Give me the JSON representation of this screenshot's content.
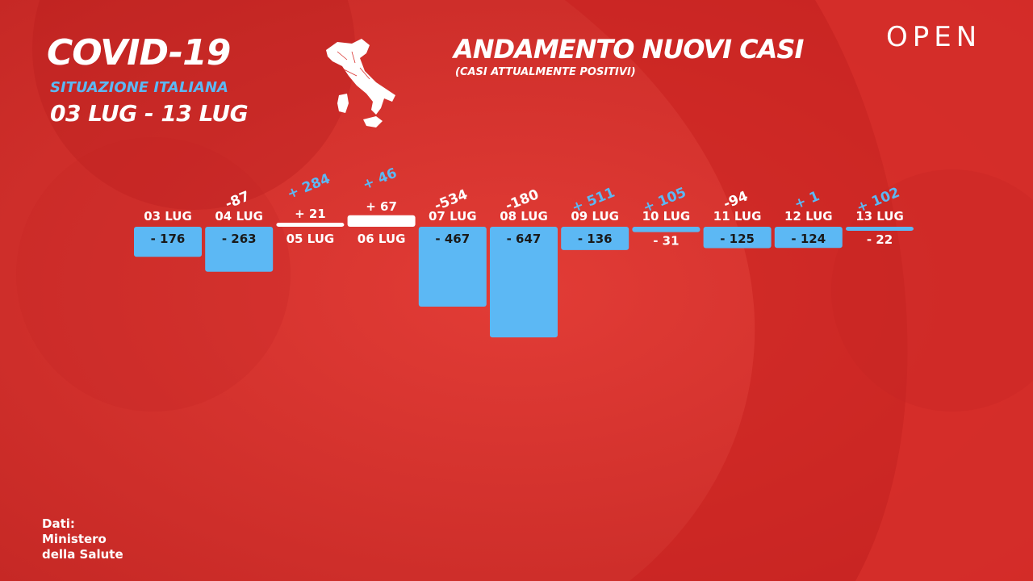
{
  "header": {
    "title": "COVID-19",
    "subtitle": "SITUAZIONE ITALIANA",
    "date_range": "03 LUG - 13 LUG",
    "brand": "OPEN"
  },
  "chart_data": {
    "type": "bar",
    "title": "ANDAMENTO NUOVI CASI",
    "subtitle": "(CASI ATTUALMENTE POSITIVI)",
    "xlabel": "",
    "ylabel": "",
    "categories": [
      "03 LUG",
      "04 LUG",
      "05 LUG",
      "06 LUG",
      "07 LUG",
      "08 LUG",
      "09 LUG",
      "10 LUG",
      "11 LUG",
      "12 LUG",
      "13 LUG"
    ],
    "values": [
      -176,
      -263,
      21,
      67,
      -467,
      -647,
      -136,
      -31,
      -125,
      -124,
      -22
    ],
    "value_labels": [
      "- 176",
      "- 263",
      "+ 21",
      "+ 67",
      "- 467",
      "- 647",
      "- 136",
      "- 31",
      "- 125",
      "- 124",
      "- 22"
    ],
    "differences": [
      "",
      "-87",
      "+ 284",
      "+ 46",
      "-534",
      "-180",
      "+ 511",
      "+ 105",
      "-94",
      "+ 1",
      "+ 102"
    ],
    "colors": {
      "negative_bar": "#5cb8f4",
      "positive_bar": "#ffffff",
      "diff_increase": "#5cb8f4",
      "diff_decrease": "#ffffff"
    }
  },
  "footer": {
    "source_lines": [
      "Dati:",
      "Ministero",
      "della Salute"
    ]
  },
  "icons": {
    "map": "italy-map-icon"
  }
}
